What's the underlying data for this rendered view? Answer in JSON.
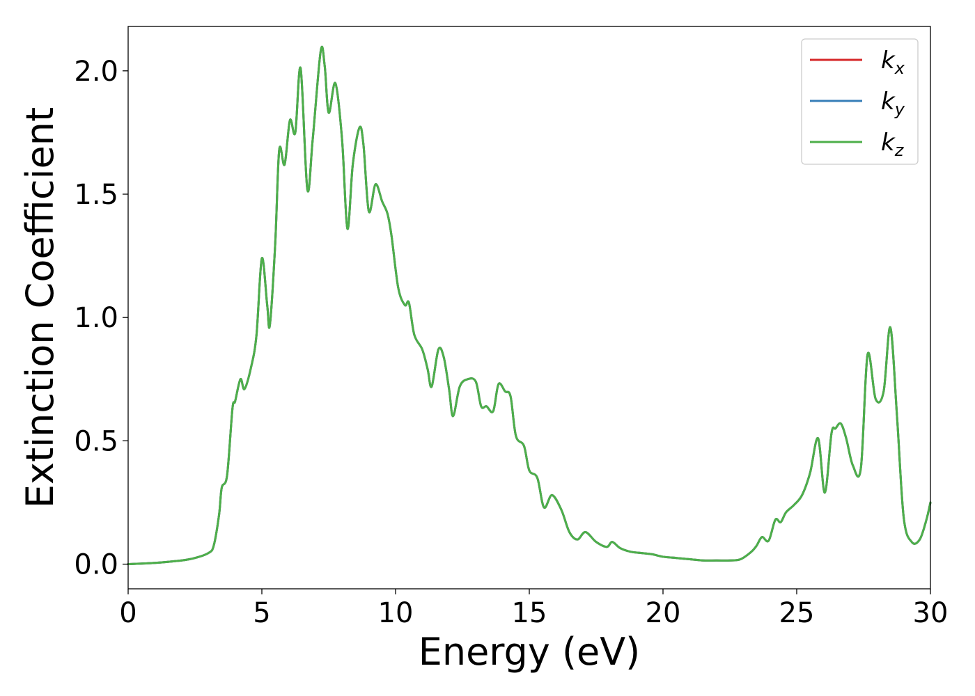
{
  "chart_data": {
    "type": "line",
    "title": "",
    "xlabel": "Energy (eV)",
    "ylabel": "Extinction Coefficient",
    "xlim": [
      0,
      30
    ],
    "ylim": [
      -0.1,
      2.18
    ],
    "xticks": [
      0,
      5,
      10,
      15,
      20,
      25,
      30
    ],
    "xtick_labels": [
      "0",
      "5",
      "10",
      "15",
      "20",
      "25",
      "30"
    ],
    "yticks": [
      0.0,
      0.5,
      1.0,
      1.5,
      2.0
    ],
    "ytick_labels": [
      "0.0",
      "0.5",
      "1.0",
      "1.5",
      "2.0"
    ],
    "grid": false,
    "legend_position": "top-right",
    "series": [
      {
        "name": "k_x",
        "label_main": "k",
        "label_sub": "x",
        "color": "#d62728",
        "x": [
          0,
          1,
          2,
          2.5,
          3,
          3.2,
          3.4,
          3.5,
          3.7,
          3.9,
          4.0,
          4.2,
          4.35,
          4.6,
          4.8,
          5.0,
          5.2,
          5.3,
          5.5,
          5.65,
          5.85,
          6.05,
          6.25,
          6.45,
          6.7,
          6.9,
          7.2,
          7.35,
          7.5,
          7.75,
          8.0,
          8.2,
          8.4,
          8.65,
          8.8,
          9.0,
          9.25,
          9.5,
          9.7,
          9.85,
          10.1,
          10.35,
          10.5,
          10.7,
          11.0,
          11.2,
          11.35,
          11.6,
          11.8,
          12.0,
          12.15,
          12.4,
          12.7,
          13.0,
          13.2,
          13.4,
          13.65,
          13.85,
          14.1,
          14.3,
          14.5,
          14.8,
          15.0,
          15.3,
          15.55,
          15.85,
          16.2,
          16.5,
          16.8,
          17.1,
          17.5,
          17.9,
          18.1,
          18.4,
          18.8,
          19.2,
          19.6,
          20.0,
          20.5,
          21.0,
          21.5,
          22.0,
          22.5,
          22.9,
          23.3,
          23.5,
          23.7,
          23.95,
          24.2,
          24.4,
          24.6,
          24.9,
          25.2,
          25.5,
          25.8,
          26.05,
          26.3,
          26.45,
          26.65,
          26.85,
          27.1,
          27.4,
          27.65,
          27.95,
          28.25,
          28.5,
          28.75,
          29.0,
          29.3,
          29.6,
          29.85,
          30.0
        ],
        "y": [
          0.0,
          0.005,
          0.015,
          0.025,
          0.045,
          0.075,
          0.2,
          0.31,
          0.36,
          0.63,
          0.66,
          0.75,
          0.71,
          0.8,
          0.93,
          1.24,
          1.05,
          0.97,
          1.3,
          1.68,
          1.62,
          1.8,
          1.75,
          2.01,
          1.52,
          1.72,
          2.08,
          2.02,
          1.83,
          1.95,
          1.72,
          1.36,
          1.62,
          1.77,
          1.7,
          1.43,
          1.54,
          1.47,
          1.42,
          1.33,
          1.12,
          1.05,
          1.06,
          0.93,
          0.87,
          0.79,
          0.72,
          0.87,
          0.84,
          0.71,
          0.6,
          0.72,
          0.75,
          0.74,
          0.64,
          0.64,
          0.62,
          0.73,
          0.7,
          0.68,
          0.52,
          0.48,
          0.38,
          0.35,
          0.23,
          0.28,
          0.22,
          0.13,
          0.1,
          0.13,
          0.09,
          0.07,
          0.09,
          0.065,
          0.05,
          0.045,
          0.04,
          0.03,
          0.025,
          0.02,
          0.015,
          0.015,
          0.015,
          0.02,
          0.05,
          0.075,
          0.11,
          0.095,
          0.18,
          0.17,
          0.21,
          0.24,
          0.28,
          0.37,
          0.51,
          0.29,
          0.53,
          0.55,
          0.57,
          0.51,
          0.4,
          0.39,
          0.85,
          0.67,
          0.7,
          0.96,
          0.6,
          0.19,
          0.09,
          0.1,
          0.18,
          0.25
        ]
      },
      {
        "name": "k_y",
        "label_main": "k",
        "label_sub": "y",
        "color": "#377eb8",
        "x": [
          0,
          1,
          2,
          2.5,
          3,
          3.2,
          3.4,
          3.5,
          3.7,
          3.9,
          4.0,
          4.2,
          4.35,
          4.6,
          4.8,
          5.0,
          5.2,
          5.3,
          5.5,
          5.65,
          5.85,
          6.05,
          6.25,
          6.45,
          6.7,
          6.9,
          7.2,
          7.35,
          7.5,
          7.75,
          8.0,
          8.2,
          8.4,
          8.65,
          8.8,
          9.0,
          9.25,
          9.5,
          9.7,
          9.85,
          10.1,
          10.35,
          10.5,
          10.7,
          11.0,
          11.2,
          11.35,
          11.6,
          11.8,
          12.0,
          12.15,
          12.4,
          12.7,
          13.0,
          13.2,
          13.4,
          13.65,
          13.85,
          14.1,
          14.3,
          14.5,
          14.8,
          15.0,
          15.3,
          15.55,
          15.85,
          16.2,
          16.5,
          16.8,
          17.1,
          17.5,
          17.9,
          18.1,
          18.4,
          18.8,
          19.2,
          19.6,
          20.0,
          20.5,
          21.0,
          21.5,
          22.0,
          22.5,
          22.9,
          23.3,
          23.5,
          23.7,
          23.95,
          24.2,
          24.4,
          24.6,
          24.9,
          25.2,
          25.5,
          25.8,
          26.05,
          26.3,
          26.45,
          26.65,
          26.85,
          27.1,
          27.4,
          27.65,
          27.95,
          28.25,
          28.5,
          28.75,
          29.0,
          29.3,
          29.6,
          29.85,
          30.0
        ],
        "y": [
          0.0,
          0.005,
          0.015,
          0.025,
          0.045,
          0.075,
          0.2,
          0.31,
          0.36,
          0.63,
          0.66,
          0.75,
          0.71,
          0.8,
          0.93,
          1.24,
          1.05,
          0.97,
          1.3,
          1.68,
          1.62,
          1.8,
          1.75,
          2.01,
          1.52,
          1.72,
          2.08,
          2.02,
          1.83,
          1.95,
          1.72,
          1.36,
          1.62,
          1.77,
          1.7,
          1.43,
          1.54,
          1.47,
          1.42,
          1.33,
          1.12,
          1.05,
          1.06,
          0.93,
          0.87,
          0.79,
          0.72,
          0.87,
          0.84,
          0.71,
          0.6,
          0.72,
          0.75,
          0.74,
          0.64,
          0.64,
          0.62,
          0.73,
          0.7,
          0.68,
          0.52,
          0.48,
          0.38,
          0.35,
          0.23,
          0.28,
          0.22,
          0.13,
          0.1,
          0.13,
          0.09,
          0.07,
          0.09,
          0.065,
          0.05,
          0.045,
          0.04,
          0.03,
          0.025,
          0.02,
          0.015,
          0.015,
          0.015,
          0.02,
          0.05,
          0.075,
          0.11,
          0.095,
          0.18,
          0.17,
          0.21,
          0.24,
          0.28,
          0.37,
          0.51,
          0.29,
          0.53,
          0.55,
          0.57,
          0.51,
          0.4,
          0.39,
          0.85,
          0.67,
          0.7,
          0.96,
          0.6,
          0.19,
          0.09,
          0.1,
          0.18,
          0.25
        ]
      },
      {
        "name": "k_z",
        "label_main": "k",
        "label_sub": "z",
        "color": "#4daf4a",
        "x": [
          0,
          1,
          2,
          2.5,
          3,
          3.2,
          3.4,
          3.5,
          3.7,
          3.9,
          4.0,
          4.2,
          4.35,
          4.6,
          4.8,
          5.0,
          5.2,
          5.3,
          5.5,
          5.65,
          5.85,
          6.05,
          6.25,
          6.45,
          6.7,
          6.9,
          7.2,
          7.35,
          7.5,
          7.75,
          8.0,
          8.2,
          8.4,
          8.65,
          8.8,
          9.0,
          9.25,
          9.5,
          9.7,
          9.85,
          10.1,
          10.35,
          10.5,
          10.7,
          11.0,
          11.2,
          11.35,
          11.6,
          11.8,
          12.0,
          12.15,
          12.4,
          12.7,
          13.0,
          13.2,
          13.4,
          13.65,
          13.85,
          14.1,
          14.3,
          14.5,
          14.8,
          15.0,
          15.3,
          15.55,
          15.85,
          16.2,
          16.5,
          16.8,
          17.1,
          17.5,
          17.9,
          18.1,
          18.4,
          18.8,
          19.2,
          19.6,
          20.0,
          20.5,
          21.0,
          21.5,
          22.0,
          22.5,
          22.9,
          23.3,
          23.5,
          23.7,
          23.95,
          24.2,
          24.4,
          24.6,
          24.9,
          25.2,
          25.5,
          25.8,
          26.05,
          26.3,
          26.45,
          26.65,
          26.85,
          27.1,
          27.4,
          27.65,
          27.95,
          28.25,
          28.5,
          28.75,
          29.0,
          29.3,
          29.6,
          29.85,
          30.0
        ],
        "y": [
          0.0,
          0.005,
          0.015,
          0.025,
          0.045,
          0.075,
          0.2,
          0.31,
          0.36,
          0.63,
          0.66,
          0.75,
          0.71,
          0.8,
          0.93,
          1.24,
          1.05,
          0.97,
          1.3,
          1.68,
          1.62,
          1.8,
          1.75,
          2.01,
          1.52,
          1.72,
          2.08,
          2.02,
          1.83,
          1.95,
          1.72,
          1.36,
          1.62,
          1.77,
          1.7,
          1.43,
          1.54,
          1.47,
          1.42,
          1.33,
          1.12,
          1.05,
          1.06,
          0.93,
          0.87,
          0.79,
          0.72,
          0.87,
          0.84,
          0.71,
          0.6,
          0.72,
          0.75,
          0.74,
          0.64,
          0.64,
          0.62,
          0.73,
          0.7,
          0.68,
          0.52,
          0.48,
          0.38,
          0.35,
          0.23,
          0.28,
          0.22,
          0.13,
          0.1,
          0.13,
          0.09,
          0.07,
          0.09,
          0.065,
          0.05,
          0.045,
          0.04,
          0.03,
          0.025,
          0.02,
          0.015,
          0.015,
          0.015,
          0.02,
          0.05,
          0.075,
          0.11,
          0.095,
          0.18,
          0.17,
          0.21,
          0.24,
          0.28,
          0.37,
          0.51,
          0.29,
          0.53,
          0.55,
          0.57,
          0.51,
          0.4,
          0.39,
          0.85,
          0.67,
          0.7,
          0.96,
          0.6,
          0.19,
          0.09,
          0.1,
          0.18,
          0.25
        ]
      }
    ]
  }
}
